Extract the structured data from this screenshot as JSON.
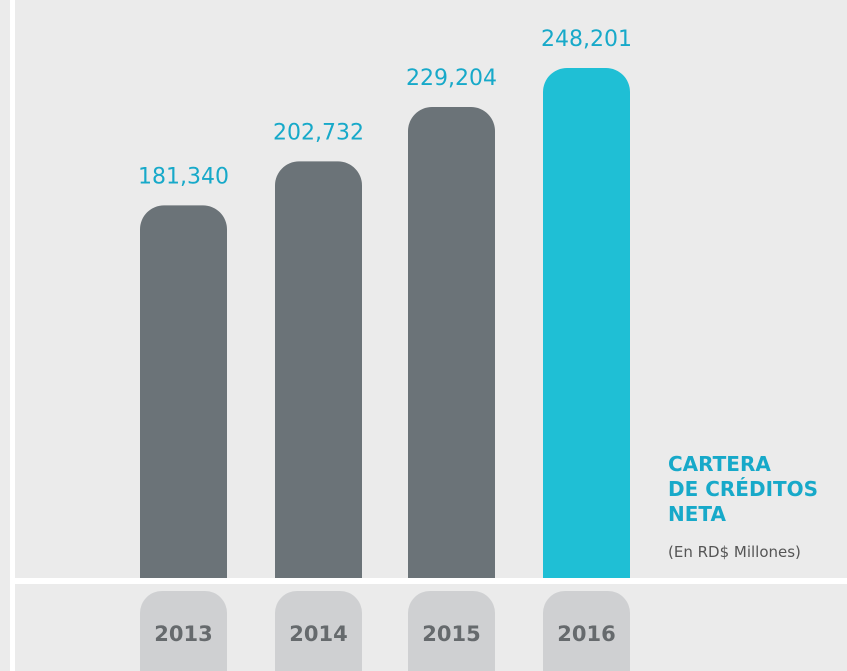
{
  "chart_data": {
    "type": "bar",
    "title": "CARTERA\nDE CRÉDITOS\nNETA",
    "subtitle": "(En RD$ Millones)",
    "categories": [
      "2013",
      "2014",
      "2015",
      "2016"
    ],
    "values": [
      181340,
      202732,
      229204,
      248201
    ],
    "value_labels": [
      "181,340",
      "202,732",
      "229,204",
      "248,201"
    ],
    "colors": [
      "#6b7378",
      "#6b7378",
      "#6b7378",
      "#1fbfd5"
    ]
  }
}
